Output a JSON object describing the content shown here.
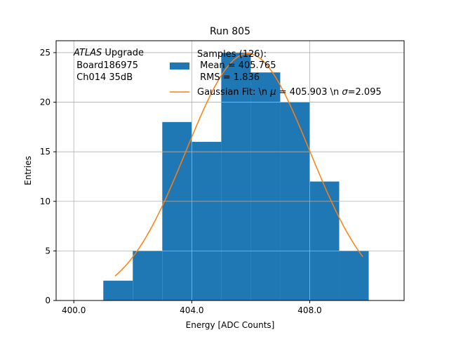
{
  "chart_data": {
    "type": "bar",
    "title": "Run 805",
    "xlabel": "Energy [ADC Counts]",
    "ylabel": "Entries",
    "xlim": [
      399.4,
      411.2
    ],
    "ylim": [
      0,
      26.2
    ],
    "grid": true,
    "x_ticks": [
      400,
      404,
      408
    ],
    "x_tick_labels": [
      "400.0",
      "404.0",
      "408.0"
    ],
    "y_ticks": [
      0,
      5,
      10,
      15,
      20,
      25
    ],
    "y_tick_labels": [
      "0",
      "5",
      "10",
      "15",
      "20",
      "25"
    ],
    "histogram": {
      "bin_edges": [
        401,
        402,
        403,
        404,
        405,
        406,
        407,
        408,
        409,
        410
      ],
      "counts": [
        2,
        5,
        18,
        16,
        25,
        23,
        20,
        12,
        5
      ],
      "color": "#1f77b4"
    },
    "fit": {
      "mu": 405.903,
      "sigma": 2.095,
      "peak": 24.9,
      "x_range": [
        401.4,
        409.8
      ],
      "color": "#ff7f0e"
    },
    "annotation": {
      "line1_italic": "ATLAS",
      "line1_rest": " Upgrade",
      "line2": " Board186975",
      "line3": " Ch014 35dB"
    },
    "legend": {
      "position": "top-right",
      "entries": [
        {
          "label_lines": [
            "Samples (126):",
            " Mean = 405.765",
            " RMS = 1.836"
          ],
          "kind": "patch",
          "color": "#1f77b4"
        },
        {
          "label_prefix": "Gaussian Fit: \\n ",
          "label_mu_sym": "μ",
          "label_mid": " = 405.903 \\n ",
          "label_sigma_sym": "σ",
          "label_suffix": "=2.095",
          "kind": "line",
          "color": "#ff7f0e"
        }
      ]
    }
  }
}
